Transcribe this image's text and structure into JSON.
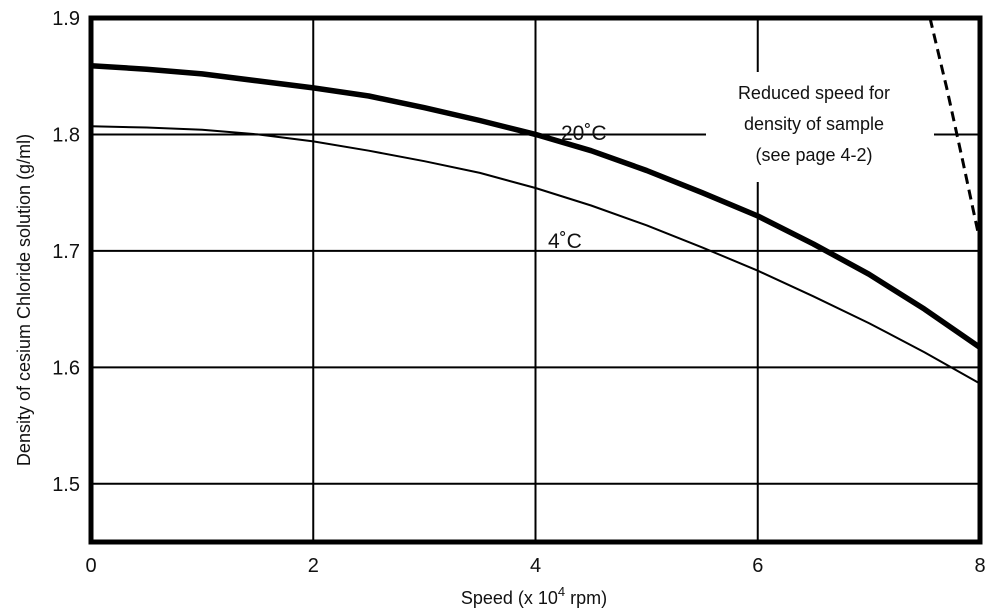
{
  "chart_data": {
    "type": "line",
    "title": "",
    "xlabel_prefix": "Speed (x 10",
    "xlabel_exponent": "4",
    "xlabel_suffix": " rpm)",
    "ylabel": "Density of cesium Chloride solution (g/ml)",
    "xlim": [
      0,
      8
    ],
    "ylim": [
      1.45,
      1.9
    ],
    "xticks": [
      "0",
      "2",
      "4",
      "6",
      "8"
    ],
    "yticks": [
      "1.5",
      "1.6",
      "1.7",
      "1.8",
      "1.9"
    ],
    "grid": true,
    "series": [
      {
        "name": "20˚C",
        "style": "thick",
        "x": [
          0,
          0.5,
          1,
          1.5,
          2,
          2.5,
          3,
          3.5,
          4,
          4.5,
          5,
          5.5,
          6,
          6.5,
          7,
          7.5,
          8
        ],
        "y": [
          1.859,
          1.856,
          1.852,
          1.846,
          1.84,
          1.833,
          1.823,
          1.812,
          1.8,
          1.786,
          1.769,
          1.75,
          1.73,
          1.706,
          1.68,
          1.65,
          1.617
        ]
      },
      {
        "name": "4˚C",
        "style": "thin",
        "x": [
          0,
          0.5,
          1,
          1.5,
          2,
          2.5,
          3,
          3.5,
          4,
          4.5,
          5,
          5.5,
          6,
          6.5,
          7,
          7.5,
          8
        ],
        "y": [
          1.807,
          1.806,
          1.804,
          1.8,
          1.794,
          1.786,
          1.777,
          1.767,
          1.754,
          1.739,
          1.722,
          1.703,
          1.683,
          1.661,
          1.638,
          1.613,
          1.586
        ]
      },
      {
        "name": "",
        "style": "dashed",
        "x": [
          7.55,
          7.7,
          7.85,
          8.0
        ],
        "y": [
          1.9,
          1.84,
          1.775,
          1.708
        ]
      }
    ],
    "annotations": [
      "Reduced speed for",
      "density of sample",
      "(see page 4-2)"
    ]
  }
}
